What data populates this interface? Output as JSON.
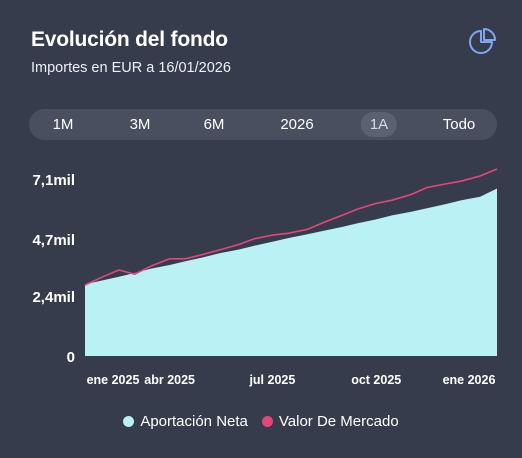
{
  "header": {
    "title": "Evolución del fondo",
    "subtitle": "Importes en EUR a 16/01/2026",
    "pie_icon": "pie-chart-icon"
  },
  "ranges": [
    {
      "label": "1M",
      "active": false
    },
    {
      "label": "3M",
      "active": false
    },
    {
      "label": "6M",
      "active": false
    },
    {
      "label": "2026",
      "active": false
    },
    {
      "label": "1A",
      "active": true
    },
    {
      "label": "Todo",
      "active": false
    }
  ],
  "colors": {
    "background": "#373c4d",
    "area": "#b9f1f4",
    "line": "#e5457b",
    "active_range": "#5c6172"
  },
  "chart_data": {
    "type": "area",
    "title": "",
    "xlabel": "",
    "ylabel": "",
    "ylim": [
      0,
      7100
    ],
    "y_ticks": [
      {
        "value": 0,
        "label": "0"
      },
      {
        "value": 2400,
        "label": "2,4mil"
      },
      {
        "value": 4700,
        "label": "4,7mil"
      },
      {
        "value": 7100,
        "label": "7,1mil"
      }
    ],
    "x_ticks": [
      "ene 2025",
      "abr 2025",
      "jul 2025",
      "oct 2025",
      "ene 2026"
    ],
    "x": [
      "2025-01-16",
      "2025-02-01",
      "2025-02-15",
      "2025-03-01",
      "2025-03-15",
      "2025-04-01",
      "2025-04-15",
      "2025-05-01",
      "2025-05-15",
      "2025-06-01",
      "2025-06-15",
      "2025-07-01",
      "2025-07-15",
      "2025-08-01",
      "2025-08-15",
      "2025-09-01",
      "2025-09-15",
      "2025-10-01",
      "2025-10-15",
      "2025-11-01",
      "2025-11-15",
      "2025-12-01",
      "2025-12-15",
      "2026-01-01",
      "2026-01-16"
    ],
    "series": [
      {
        "name": "Aportación Neta",
        "type": "area",
        "color": "#b9f1f4",
        "values": [
          2880,
          3040,
          3180,
          3330,
          3500,
          3650,
          3800,
          3960,
          4120,
          4270,
          4420,
          4580,
          4730,
          4880,
          5020,
          5180,
          5330,
          5480,
          5640,
          5790,
          5930,
          6090,
          6240,
          6390,
          6720
        ]
      },
      {
        "name": "Valor De Mercado",
        "type": "line",
        "color": "#e5457b",
        "values": [
          2850,
          3180,
          3450,
          3280,
          3600,
          3900,
          3900,
          4080,
          4250,
          4470,
          4700,
          4850,
          4920,
          5080,
          5350,
          5650,
          5900,
          6120,
          6250,
          6480,
          6760,
          6900,
          7010,
          7220,
          7500
        ]
      }
    ],
    "grid": false,
    "legend_position": "bottom-center"
  }
}
